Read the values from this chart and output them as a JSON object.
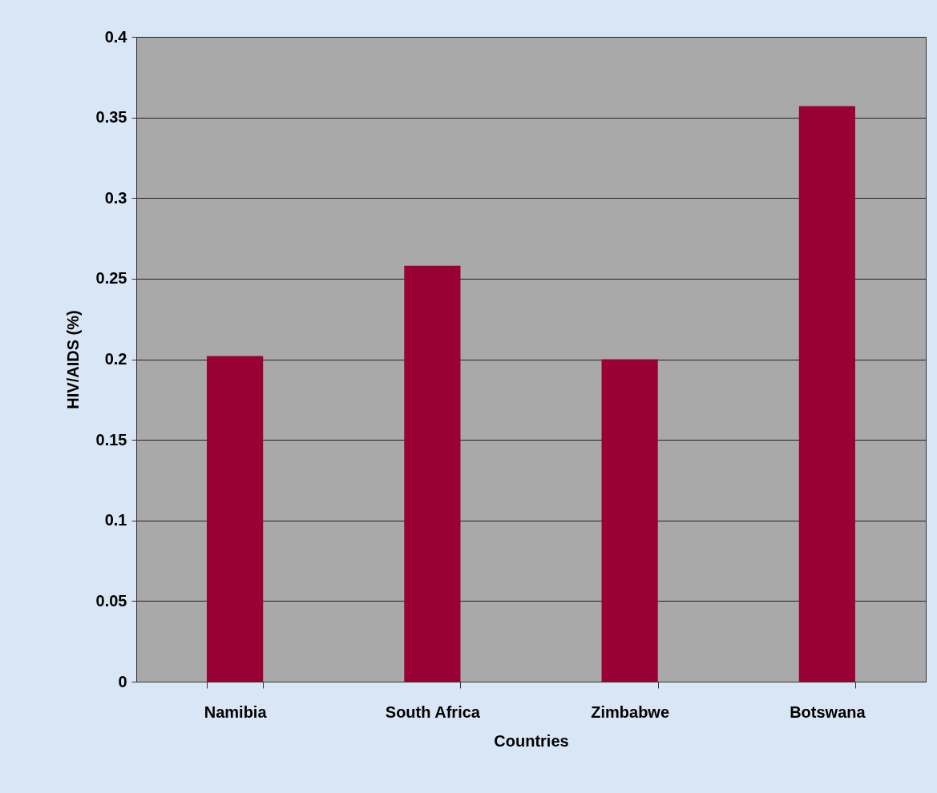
{
  "chart_data": {
    "type": "bar",
    "xlabel": "Countries",
    "ylabel": "HIV/AIDS (%)",
    "categories": [
      "Namibia",
      "South Africa",
      "Zimbabwe",
      "Botswana"
    ],
    "values": [
      0.202,
      0.258,
      0.2,
      0.357
    ],
    "color": "#990033",
    "ylim": [
      0,
      0.4
    ],
    "yticks": [
      0,
      0.05,
      0.1,
      0.15,
      0.2,
      0.25,
      0.3,
      0.35,
      0.4
    ],
    "grid": "y"
  }
}
